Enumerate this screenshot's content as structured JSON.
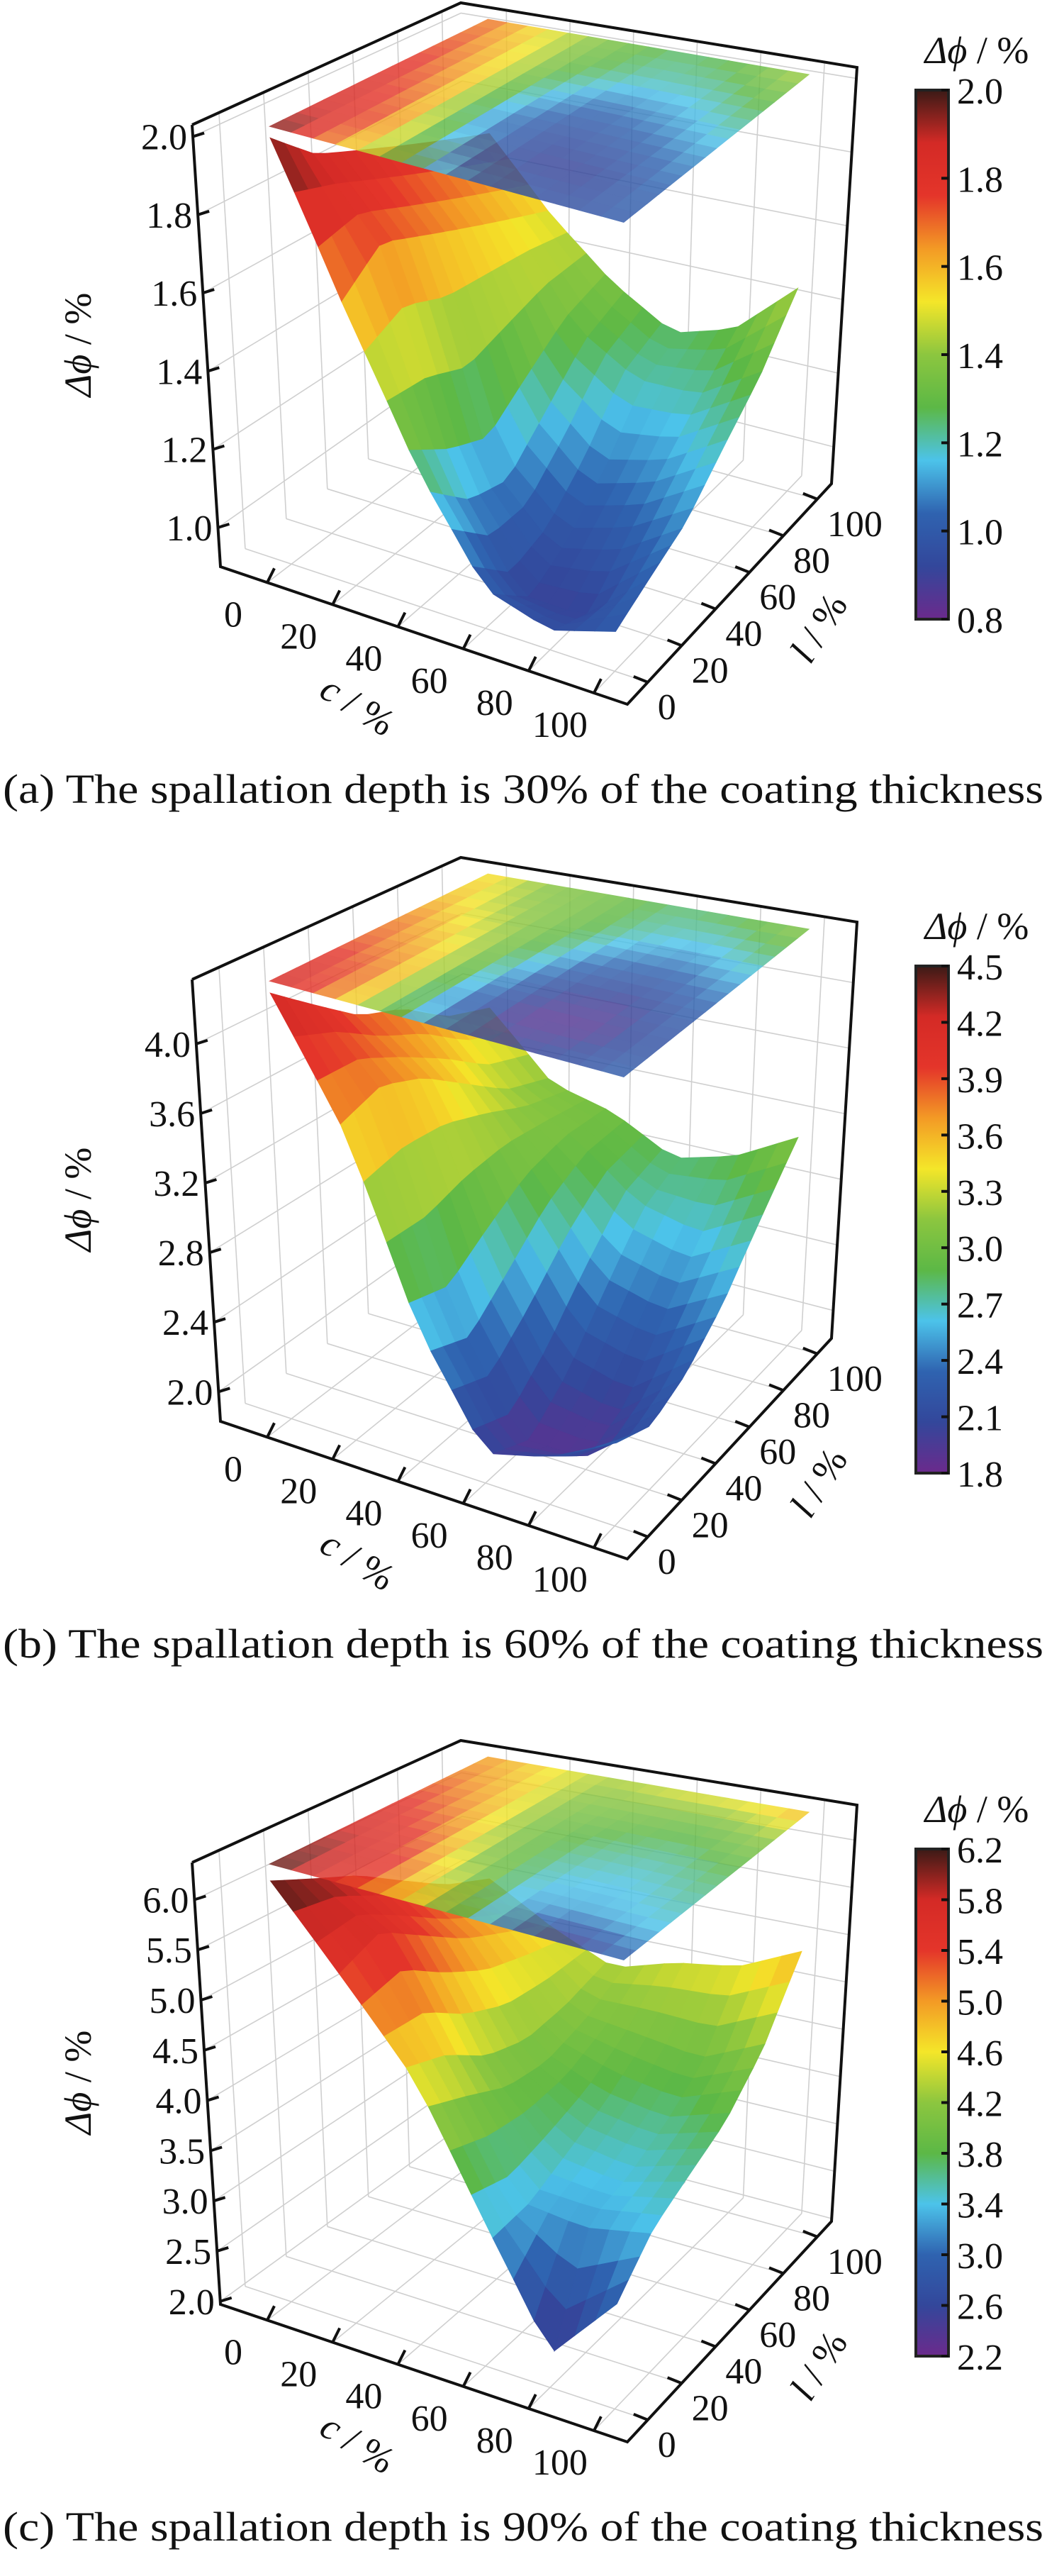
{
  "colormap": [
    "#6b2a8c",
    "#33479b",
    "#2f63b0",
    "#4cc3ea",
    "#5cb846",
    "#8cc63f",
    "#f4e629",
    "#f39a25",
    "#e4352a",
    "#d42a26",
    "#3b1a16"
  ],
  "chart_data": [
    {
      "type": "surface3d",
      "caption": "(a) The spallation depth is 30% of the coating thickness",
      "xlabel": {
        "symbol": "c",
        "unit": " / %"
      },
      "ylabel": {
        "symbol": "l",
        "unit": " / %"
      },
      "zlabel": {
        "symbol": "Δϕ",
        "unit": " / %"
      },
      "x_ticks": [
        0,
        20,
        40,
        60,
        80,
        100
      ],
      "y_ticks": [
        0,
        20,
        40,
        60,
        80,
        100
      ],
      "z_ticks": [
        1.0,
        1.2,
        1.4,
        1.6,
        1.8,
        2.0
      ],
      "zlim": [
        0.9,
        2.03
      ],
      "colorbar": {
        "title_symbol": "Δϕ",
        "title_unit": " / %",
        "range": [
          0.8,
          2.0
        ],
        "ticks": [
          0.8,
          1.0,
          1.2,
          1.4,
          1.6,
          1.8,
          2.0
        ]
      },
      "grid": {
        "c": [
          0,
          20,
          40,
          60,
          80,
          100
        ],
        "l": [
          0,
          20,
          40,
          60,
          80,
          100
        ],
        "z": [
          [
            2.0,
            1.9,
            1.85,
            1.8,
            1.75,
            1.7
          ],
          [
            1.6,
            1.7,
            1.65,
            1.6,
            1.55,
            1.5
          ],
          [
            1.25,
            1.15,
            1.1,
            1.2,
            1.3,
            1.35
          ],
          [
            1.0,
            0.9,
            0.95,
            1.05,
            1.2,
            1.25
          ],
          [
            0.95,
            0.9,
            1.0,
            1.1,
            1.2,
            1.3
          ],
          [
            1.0,
            1.05,
            1.1,
            1.2,
            1.3,
            1.45
          ]
        ]
      }
    },
    {
      "type": "surface3d",
      "caption": "(b) The spallation depth is 60% of the coating thickness",
      "xlabel": {
        "symbol": "c",
        "unit": " / %"
      },
      "ylabel": {
        "symbol": "l",
        "unit": " / %"
      },
      "zlabel": {
        "symbol": "Δϕ",
        "unit": " / %"
      },
      "x_ticks": [
        0,
        20,
        40,
        60,
        80,
        100
      ],
      "y_ticks": [
        0,
        20,
        40,
        60,
        80,
        100
      ],
      "z_ticks": [
        2.0,
        2.4,
        2.8,
        3.2,
        3.6,
        4.0
      ],
      "zlim": [
        1.83,
        4.37
      ],
      "colorbar": {
        "title_symbol": "Δϕ",
        "title_unit": " / %",
        "range": [
          1.8,
          4.5
        ],
        "ticks": [
          1.8,
          2.1,
          2.4,
          2.7,
          3.0,
          3.3,
          3.6,
          3.9,
          4.2,
          4.5
        ]
      },
      "grid": {
        "c": [
          0,
          20,
          40,
          60,
          80,
          100
        ],
        "l": [
          0,
          20,
          40,
          60,
          80,
          100
        ],
        "z": [
          [
            4.3,
            4.1,
            3.9,
            3.8,
            3.6,
            3.5
          ],
          [
            3.6,
            3.7,
            3.6,
            3.4,
            3.2,
            3.1
          ],
          [
            2.6,
            2.5,
            2.7,
            2.9,
            3.0,
            3.0
          ],
          [
            2.0,
            1.9,
            2.1,
            2.4,
            2.7,
            2.8
          ],
          [
            2.1,
            1.9,
            2.0,
            2.3,
            2.6,
            2.9
          ],
          [
            2.3,
            2.2,
            2.3,
            2.5,
            2.8,
            3.1
          ]
        ]
      }
    },
    {
      "type": "surface3d",
      "caption": "(c) The spallation depth is 90% of the coating thickness",
      "xlabel": {
        "symbol": "c",
        "unit": " / %"
      },
      "ylabel": {
        "symbol": "l",
        "unit": " / %"
      },
      "zlabel": {
        "symbol": "Δϕ",
        "unit": " / %"
      },
      "x_ticks": [
        0,
        20,
        40,
        60,
        80,
        100
      ],
      "y_ticks": [
        0,
        20,
        40,
        60,
        80,
        100
      ],
      "z_ticks": [
        2.0,
        2.5,
        3.0,
        3.5,
        4.0,
        4.5,
        5.0,
        5.5,
        6.0
      ],
      "zlim": [
        1.97,
        6.37
      ],
      "colorbar": {
        "title_symbol": "Δϕ",
        "title_unit": " / %",
        "range": [
          2.2,
          6.2
        ],
        "ticks": [
          2.2,
          2.6,
          3.0,
          3.4,
          3.8,
          4.2,
          4.6,
          5.0,
          5.4,
          5.8,
          6.2
        ]
      },
      "grid": {
        "c": [
          0,
          20,
          40,
          60,
          80,
          100
        ],
        "l": [
          0,
          20,
          40,
          60,
          80,
          100
        ],
        "z": [
          [
            6.2,
            6.0,
            5.8,
            5.5,
            5.2,
            5.0
          ],
          [
            5.4,
            5.6,
            5.3,
            5.0,
            4.8,
            4.6
          ],
          [
            4.6,
            4.4,
            4.1,
            4.0,
            4.1,
            4.3
          ],
          [
            3.4,
            3.3,
            3.5,
            3.7,
            4.0,
            4.5
          ],
          [
            2.3,
            3.3,
            3.4,
            3.6,
            3.9,
            4.6
          ],
          [
            3.0,
            3.4,
            3.6,
            3.8,
            4.2,
            4.9
          ]
        ]
      }
    }
  ]
}
